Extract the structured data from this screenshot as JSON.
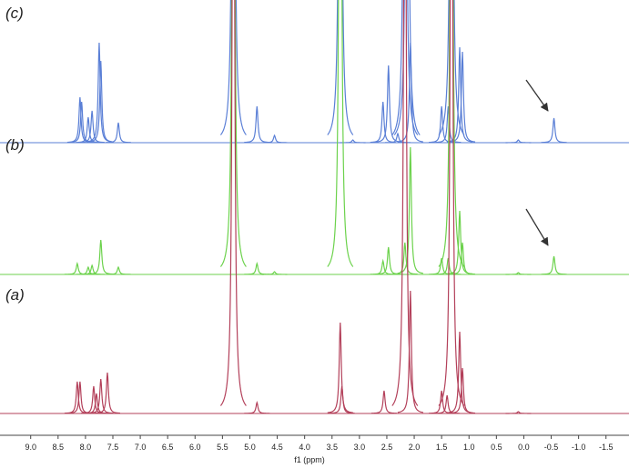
{
  "chart_data": {
    "type": "spectrum",
    "x_label": "f1 (ppm)",
    "xlim": [
      9.56,
      -1.92
    ],
    "xticks": [
      {
        "value": 9,
        "label": "9.0"
      },
      8.5,
      {
        "value": 8,
        "label": "8.0"
      },
      7.5,
      {
        "value": 7,
        "label": "7.0"
      },
      6.5,
      {
        "value": 6,
        "label": "6.0"
      },
      5.5,
      {
        "value": 5,
        "label": "5.0"
      },
      4.5,
      {
        "value": 4,
        "label": "4.0"
      },
      3.5,
      {
        "value": 3,
        "label": "3.0"
      },
      2.5,
      {
        "value": 2,
        "label": "2.0"
      },
      1.5,
      {
        "value": 1,
        "label": "1.0"
      },
      0.5,
      {
        "value": 0,
        "label": "0.0"
      },
      -0.5,
      {
        "value": -1,
        "label": "-1.0"
      },
      -1.5
    ],
    "series": [
      {
        "name": "(c)",
        "color": "#5a7fd6",
        "x": [
          8.1,
          8.07,
          7.95,
          7.88,
          7.75,
          7.72,
          7.4,
          5.3,
          4.87,
          4.55,
          3.35,
          3.12,
          2.57,
          2.47,
          2.3,
          2.17,
          2.13,
          2.07,
          1.5,
          1.38,
          1.32,
          1.17,
          1.12,
          0.1,
          -0.55
        ],
        "values": [
          50,
          45,
          28,
          35,
          110,
          90,
          22,
          1000,
          40,
          8,
          1000,
          3,
          45,
          85,
          10,
          1000,
          1000,
          110,
          40,
          40,
          1000,
          105,
          100,
          3,
          27
        ]
      },
      {
        "name": "(b)",
        "color": "#6cd24c",
        "x": [
          8.15,
          7.95,
          7.88,
          7.72,
          7.4,
          5.3,
          4.87,
          4.55,
          3.35,
          2.57,
          2.47,
          2.17,
          2.07,
          1.5,
          1.38,
          1.32,
          1.17,
          1.12,
          0.1,
          -0.55
        ],
        "values": [
          12,
          8,
          10,
          38,
          8,
          1000,
          12,
          3,
          1000,
          15,
          30,
          35,
          140,
          18,
          18,
          1000,
          70,
          35,
          2,
          20
        ]
      },
      {
        "name": "(a)",
        "color": "#b3405a",
        "x": [
          8.15,
          8.1,
          7.85,
          7.8,
          7.72,
          7.6,
          5.3,
          4.87,
          3.35,
          3.32,
          2.55,
          2.17,
          2.07,
          1.5,
          1.4,
          1.32,
          1.17,
          1.12,
          0.1
        ],
        "values": [
          35,
          35,
          30,
          22,
          38,
          45,
          1000,
          12,
          100,
          30,
          25,
          1000,
          135,
          25,
          20,
          1000,
          90,
          50,
          2
        ]
      }
    ]
  }
}
